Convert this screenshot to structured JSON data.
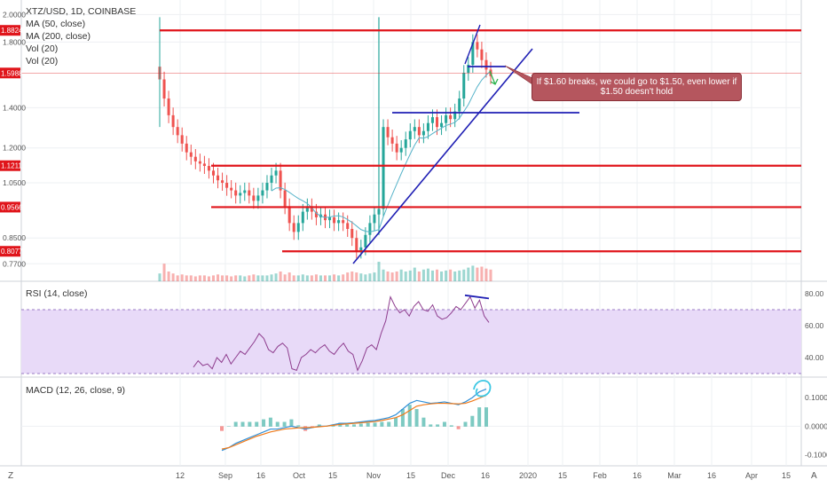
{
  "header": {
    "symbol": "XTZ/USD, 1D, COINBASE",
    "ma50": "MA (50, close)",
    "ma200": "MA (200, close)",
    "vol1": "Vol (20)",
    "vol2": "Vol (20)"
  },
  "rsi_label": "RSI (14, close)",
  "macd_label": "MACD (12, 26, close, 9)",
  "annotation": "If $1.60 breaks, we could go to $1.50, even lower if $1.50 doesn't hold",
  "corner_left": "Z",
  "corner_right": "A",
  "colors": {
    "up": "#26a69a",
    "down": "#ef5350",
    "level": "#e0151b",
    "trend": "#1f1fb4",
    "ma": "#56b3c9",
    "rsi_band": "#e8daf8",
    "macd": "#2f8fd8",
    "signal": "#f07a1a"
  },
  "chart_data": [
    {
      "type": "candlestick",
      "title": "XTZ/USD, 1D, COINBASE",
      "y_ticks": [
        "2.0000",
        "1.8000",
        "1.4000",
        "1.2000",
        "1.0500",
        "0.8500",
        "0.7700"
      ],
      "ylim": [
        0.74,
        2.03
      ],
      "scale": "log",
      "price_labels": [
        {
          "value": "1.8824",
          "color": "#e0151b"
        },
        {
          "value": "1.5988",
          "color": "#e0151b"
        },
        {
          "value": "1.1211",
          "color": "#e0151b"
        },
        {
          "value": "0.9566",
          "color": "#e0151b"
        },
        {
          "value": "0.8077",
          "color": "#e0151b"
        }
      ],
      "horizontal_levels": [
        1.8824,
        1.1211,
        0.9566,
        0.8077
      ],
      "x_ticks": [
        "12",
        "Sep",
        "16",
        "Oct",
        "15",
        "Nov",
        "15",
        "Dec",
        "16",
        "2020",
        "15",
        "Feb",
        "16",
        "Mar",
        "16",
        "Apr",
        "15"
      ],
      "close_series": [
        1.56,
        1.45,
        1.36,
        1.3,
        1.26,
        1.22,
        1.18,
        1.16,
        1.14,
        1.13,
        1.12,
        1.1,
        1.08,
        1.06,
        1.05,
        1.03,
        1.02,
        1.0,
        1.01,
        1.02,
        1.0,
        0.98,
        1.0,
        1.02,
        1.05,
        1.08,
        1.1,
        1.02,
        0.96,
        0.9,
        0.87,
        0.9,
        0.94,
        0.96,
        0.94,
        0.92,
        0.93,
        0.91,
        0.92,
        0.9,
        0.91,
        0.9,
        0.88,
        0.85,
        0.81,
        0.82,
        0.86,
        0.9,
        0.93,
        0.95,
        1.3,
        1.25,
        1.22,
        1.18,
        1.2,
        1.24,
        1.28,
        1.3,
        1.26,
        1.28,
        1.32,
        1.35,
        1.3,
        1.32,
        1.36,
        1.34,
        1.38,
        1.45,
        1.6,
        1.65,
        1.8,
        1.75,
        1.68,
        1.62,
        1.58
      ],
      "volume_series": [
        0.4,
        0.9,
        0.5,
        0.4,
        0.3,
        0.35,
        0.3,
        0.3,
        0.25,
        0.3,
        0.3,
        0.25,
        0.3,
        0.35,
        0.3,
        0.3,
        0.25,
        0.3,
        0.3,
        0.25,
        0.3,
        0.35,
        0.3,
        0.3,
        0.3,
        0.35,
        0.4,
        0.5,
        0.35,
        0.45,
        0.3,
        0.3,
        0.35,
        0.3,
        0.3,
        0.35,
        0.3,
        0.3,
        0.3,
        0.35,
        0.3,
        0.35,
        0.45,
        0.5,
        0.45,
        0.4,
        0.35,
        0.4,
        0.45,
        1.0,
        0.6,
        0.5,
        0.45,
        0.5,
        0.6,
        0.5,
        0.55,
        0.7,
        0.5,
        0.6,
        0.65,
        0.55,
        0.6,
        0.5,
        0.55,
        0.6,
        0.5,
        0.55,
        0.6,
        0.7,
        0.8,
        0.7,
        0.75,
        0.65,
        0.6
      ]
    },
    {
      "type": "line",
      "title": "RSI (14, close)",
      "y_ticks": [
        "80.00",
        "60.00",
        "40.00"
      ],
      "band": [
        30,
        70
      ],
      "values": [
        34,
        38,
        35,
        36,
        33,
        40,
        37,
        42,
        36,
        40,
        44,
        42,
        46,
        50,
        55,
        52,
        45,
        43,
        47,
        49,
        46,
        33,
        32,
        40,
        42,
        45,
        43,
        46,
        48,
        44,
        42,
        46,
        49,
        44,
        42,
        32,
        38,
        46,
        48,
        45,
        55,
        63,
        78,
        72,
        68,
        70,
        66,
        72,
        75,
        70,
        69,
        73,
        66,
        64,
        65,
        68,
        72,
        70,
        74,
        78,
        71,
        76,
        66,
        62
      ]
    },
    {
      "type": "line",
      "title": "MACD (12, 26, close, 9)",
      "y_ticks": [
        "0.1000",
        "0.0000",
        "-0.1000"
      ],
      "macd": [
        -0.085,
        -0.075,
        -0.06,
        -0.05,
        -0.04,
        -0.03,
        -0.02,
        -0.01,
        -0.01,
        -0.005,
        -0.0,
        -0.005,
        -0.01,
        -0.005,
        0.0,
        0.0,
        0.005,
        0.01,
        0.01,
        0.012,
        0.015,
        0.018,
        0.02,
        0.025,
        0.03,
        0.04,
        0.06,
        0.08,
        0.09,
        0.085,
        0.08,
        0.082,
        0.085,
        0.08,
        0.075,
        0.085,
        0.1,
        0.12,
        0.13
      ],
      "signal": [
        -0.08,
        -0.075,
        -0.065,
        -0.055,
        -0.045,
        -0.035,
        -0.028,
        -0.02,
        -0.015,
        -0.01,
        -0.008,
        -0.006,
        -0.005,
        -0.004,
        -0.002,
        0.0,
        0.003,
        0.006,
        0.008,
        0.01,
        0.012,
        0.014,
        0.016,
        0.02,
        0.025,
        0.03,
        0.04,
        0.055,
        0.07,
        0.075,
        0.078,
        0.08,
        0.08,
        0.079,
        0.078,
        0.08,
        0.088,
        0.098,
        0.108
      ]
    }
  ]
}
